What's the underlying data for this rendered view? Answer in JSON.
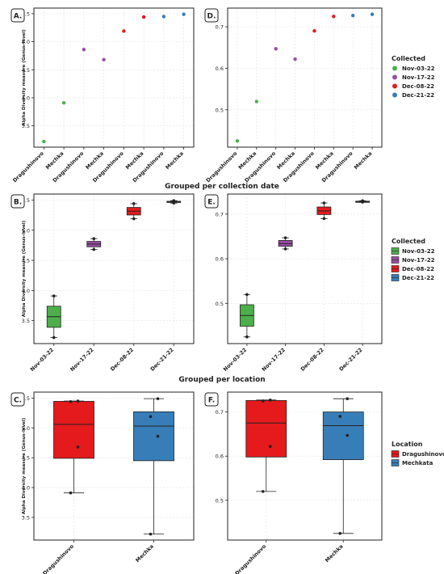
{
  "section_titles": {
    "collection": "Grouped per collection date",
    "location": "Grouped per location"
  },
  "y_label": "Alpha Diversity measure (Genus-level)",
  "legends": {
    "collected": {
      "title": "Collected",
      "entries": [
        {
          "label": "Nov-03-22",
          "color": "#4daf4a"
        },
        {
          "label": "Nov-17-22",
          "color": "#984ea3"
        },
        {
          "label": "Dec-08-22",
          "color": "#e41a1c"
        },
        {
          "label": "Dec-21-22",
          "color": "#377eb8"
        }
      ]
    },
    "location": {
      "title": "Location",
      "entries": [
        {
          "label": "Dragushinovo",
          "color": "#e41a1c"
        },
        {
          "label": "Mechkata",
          "color": "#377eb8"
        }
      ]
    }
  },
  "chart_data": [
    {
      "panel": "A.",
      "type": "scatter",
      "categories": [
        "Dragushinovo",
        "Mechka",
        "Dragushinovo",
        "Mechka",
        "Dragushinovo",
        "Mechka",
        "Dragushinovo",
        "Mechka"
      ],
      "values": [
        3.22,
        3.91,
        4.86,
        4.68,
        5.19,
        5.44,
        5.45,
        5.49
      ],
      "colors": [
        "#4daf4a",
        "#4daf4a",
        "#984ea3",
        "#984ea3",
        "#e41a1c",
        "#e41a1c",
        "#377eb8",
        "#377eb8"
      ],
      "ylim": [
        3.12,
        5.6
      ],
      "yticks": [
        3.5,
        4.0,
        4.5,
        5.0,
        5.5
      ],
      "ytick_labels": [
        "3.5",
        "4.0",
        "4.5",
        "5.0",
        "5.5"
      ],
      "ylabel": "Alpha Diversity measure (Genus-level)"
    },
    {
      "panel": "D.",
      "type": "scatter",
      "categories": [
        "Dragushinovo",
        "Mechka",
        "Dragushinovo",
        "Mechka",
        "Dragushinovo",
        "Mechka",
        "Dragushinovo",
        "Mechka"
      ],
      "values": [
        0.425,
        0.52,
        0.647,
        0.622,
        0.69,
        0.725,
        0.727,
        0.73
      ],
      "colors": [
        "#4daf4a",
        "#4daf4a",
        "#984ea3",
        "#984ea3",
        "#e41a1c",
        "#e41a1c",
        "#377eb8",
        "#377eb8"
      ],
      "ylim": [
        0.41,
        0.745
      ],
      "yticks": [
        0.5,
        0.6,
        0.7
      ],
      "ytick_labels": [
        "0.5",
        "0.6",
        "0.7"
      ],
      "ylabel": ""
    },
    {
      "panel": "B.",
      "type": "box",
      "categories": [
        "Nov-03-22",
        "Nov-17-22",
        "Dec-08-22",
        "Dec-21-22"
      ],
      "colors": [
        "#4daf4a",
        "#984ea3",
        "#e41a1c",
        "#377eb8"
      ],
      "boxes": [
        {
          "min": 3.22,
          "q1": 3.39,
          "median": 3.565,
          "q3": 3.74,
          "max": 3.91
        },
        {
          "min": 4.68,
          "q1": 4.725,
          "median": 4.77,
          "q3": 4.815,
          "max": 4.86
        },
        {
          "min": 5.19,
          "q1": 5.2525,
          "median": 5.315,
          "q3": 5.3775,
          "max": 5.44
        },
        {
          "min": 5.45,
          "q1": 5.46,
          "median": 5.47,
          "q3": 5.48,
          "max": 5.49
        }
      ],
      "points": [
        [
          3.22,
          3.91
        ],
        [
          4.68,
          4.86
        ],
        [
          5.19,
          5.44
        ],
        [
          5.45,
          5.49
        ]
      ],
      "ylim": [
        3.12,
        5.6
      ],
      "yticks": [
        3.5,
        4.0,
        4.5,
        5.0,
        5.5
      ],
      "ytick_labels": [
        "3.5",
        "4.0",
        "4.5",
        "5.0",
        "5.5"
      ],
      "ylabel": "Alpha Diversity measure (Genus-level)"
    },
    {
      "panel": "E.",
      "type": "box",
      "categories": [
        "Nov-03-22",
        "Nov-17-22",
        "Dec-08-22",
        "Dec-21-22"
      ],
      "colors": [
        "#4daf4a",
        "#984ea3",
        "#e41a1c",
        "#377eb8"
      ],
      "boxes": [
        {
          "min": 0.425,
          "q1": 0.449,
          "median": 0.473,
          "q3": 0.497,
          "max": 0.52
        },
        {
          "min": 0.622,
          "q1": 0.628,
          "median": 0.634,
          "q3": 0.641,
          "max": 0.647
        },
        {
          "min": 0.69,
          "q1": 0.699,
          "median": 0.707,
          "q3": 0.716,
          "max": 0.725
        },
        {
          "min": 0.727,
          "q1": 0.728,
          "median": 0.728,
          "q3": 0.729,
          "max": 0.73
        }
      ],
      "points": [
        [
          0.425,
          0.52
        ],
        [
          0.622,
          0.647
        ],
        [
          0.69,
          0.725
        ],
        [
          0.727,
          0.73
        ]
      ],
      "ylim": [
        0.41,
        0.745
      ],
      "yticks": [
        0.5,
        0.6,
        0.7
      ],
      "ytick_labels": [
        "0.5",
        "0.6",
        "0.7"
      ],
      "ylabel": ""
    },
    {
      "panel": "C.",
      "type": "box",
      "categories": [
        "Dragushinovo",
        "Mechka"
      ],
      "colors": [
        "#e41a1c",
        "#377eb8"
      ],
      "boxes": [
        {
          "min": 3.91,
          "q1": 4.49,
          "median": 5.06,
          "q3": 5.445,
          "max": 5.45
        },
        {
          "min": 3.22,
          "q1": 4.45,
          "median": 5.03,
          "q3": 5.27,
          "max": 5.49
        }
      ],
      "points": [
        [
          3.91,
          4.68,
          5.44,
          5.45
        ],
        [
          3.22,
          4.86,
          5.19,
          5.49
        ]
      ],
      "ylim": [
        3.12,
        5.6
      ],
      "yticks": [
        3.5,
        4.0,
        4.5,
        5.0,
        5.5
      ],
      "ytick_labels": [
        "3.5",
        "4.0",
        "4.5",
        "5.0",
        "5.5"
      ],
      "ylabel": "Alpha Diversity measure (Genus-level)"
    },
    {
      "panel": "F.",
      "type": "box",
      "categories": [
        "Dragushinovo",
        "Mechka"
      ],
      "colors": [
        "#e41a1c",
        "#377eb8"
      ],
      "boxes": [
        {
          "min": 0.52,
          "q1": 0.598,
          "median": 0.675,
          "q3": 0.726,
          "max": 0.727
        },
        {
          "min": 0.425,
          "q1": 0.592,
          "median": 0.669,
          "q3": 0.7,
          "max": 0.73
        }
      ],
      "points": [
        [
          0.52,
          0.622,
          0.725,
          0.727
        ],
        [
          0.425,
          0.647,
          0.69,
          0.73
        ]
      ],
      "ylim": [
        0.41,
        0.745
      ],
      "yticks": [
        0.5,
        0.6,
        0.7
      ],
      "ytick_labels": [
        "0.5",
        "0.6",
        "0.7"
      ],
      "ylabel": ""
    }
  ]
}
